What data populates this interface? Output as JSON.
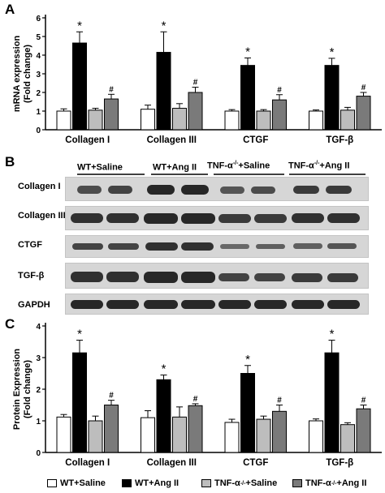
{
  "panels": {
    "a": "A",
    "b": "B",
    "c": "C"
  },
  "chart_data": [
    {
      "type": "bar",
      "ylabel_line1": "mRNA expression",
      "ylabel_line2": "(Fold change)",
      "ylim": [
        0,
        6
      ],
      "yticks": [
        "0",
        "1",
        "2",
        "3",
        "4",
        "5",
        "6"
      ],
      "categories": [
        "Collagen I",
        "Collagen III",
        "CTGF",
        "TGF-β"
      ],
      "series": [
        {
          "values": [
            1.0,
            1.1,
            1.0,
            1.0
          ],
          "errors": [
            0.12,
            0.22,
            0.08,
            0.06
          ],
          "color": "#ffffff"
        },
        {
          "values": [
            4.65,
            4.15,
            3.45,
            3.45
          ],
          "errors": [
            0.6,
            1.1,
            0.4,
            0.38
          ],
          "color": "#000000"
        },
        {
          "values": [
            1.05,
            1.15,
            1.0,
            1.05
          ],
          "errors": [
            0.1,
            0.25,
            0.08,
            0.15
          ],
          "color": "#bdbdbd"
        },
        {
          "values": [
            1.65,
            2.0,
            1.6,
            1.8
          ],
          "errors": [
            0.25,
            0.28,
            0.28,
            0.2
          ],
          "color": "#7a7a7a"
        }
      ],
      "marks": {
        "star": "*",
        "hash": "#"
      }
    },
    {
      "type": "bar",
      "ylabel_line1": "Protein Expression",
      "ylabel_line2": "(Fold change)",
      "ylim": [
        0,
        4
      ],
      "yticks": [
        "0",
        "1",
        "2",
        "3",
        "4"
      ],
      "categories": [
        "Collagen I",
        "Collagen III",
        "CTGF",
        "TGF-β"
      ],
      "series": [
        {
          "values": [
            1.12,
            1.1,
            0.95,
            1.0
          ],
          "errors": [
            0.08,
            0.22,
            0.1,
            0.06
          ],
          "color": "#ffffff"
        },
        {
          "values": [
            3.15,
            2.3,
            2.5,
            3.15
          ],
          "errors": [
            0.4,
            0.15,
            0.25,
            0.4
          ],
          "color": "#000000"
        },
        {
          "values": [
            1.0,
            1.12,
            1.05,
            0.88
          ],
          "errors": [
            0.15,
            0.32,
            0.1,
            0.06
          ],
          "color": "#bdbdbd"
        },
        {
          "values": [
            1.5,
            1.48,
            1.3,
            1.38
          ],
          "errors": [
            0.15,
            0.06,
            0.2,
            0.12
          ],
          "color": "#7a7a7a"
        }
      ],
      "marks": {
        "star": "*",
        "hash": "#"
      }
    }
  ],
  "blot": {
    "groups": [
      {
        "main": "WT+Saline",
        "sup": "",
        "tail": ""
      },
      {
        "main": "WT+Ang II",
        "sup": "",
        "tail": ""
      },
      {
        "main": "TNF-α",
        "sup": "-/-",
        "tail": "+Saline"
      },
      {
        "main": "TNF-α",
        "sup": "-/-",
        "tail": "+Ang II"
      }
    ],
    "rows": [
      "Collagen I",
      "Collagen III",
      "CTGF",
      "TGF-β",
      "GAPDH"
    ]
  },
  "legend": [
    {
      "main": "WT+Saline",
      "sup": "",
      "tail": "",
      "color": "#ffffff"
    },
    {
      "main": "WT+Ang II",
      "sup": "",
      "tail": "",
      "color": "#000000"
    },
    {
      "main": "TNF-α",
      "sup": "-/-",
      "tail": "+Saline",
      "color": "#bdbdbd"
    },
    {
      "main": "TNF-α",
      "sup": "-/-",
      "tail": "+Ang II",
      "color": "#7a7a7a"
    }
  ]
}
